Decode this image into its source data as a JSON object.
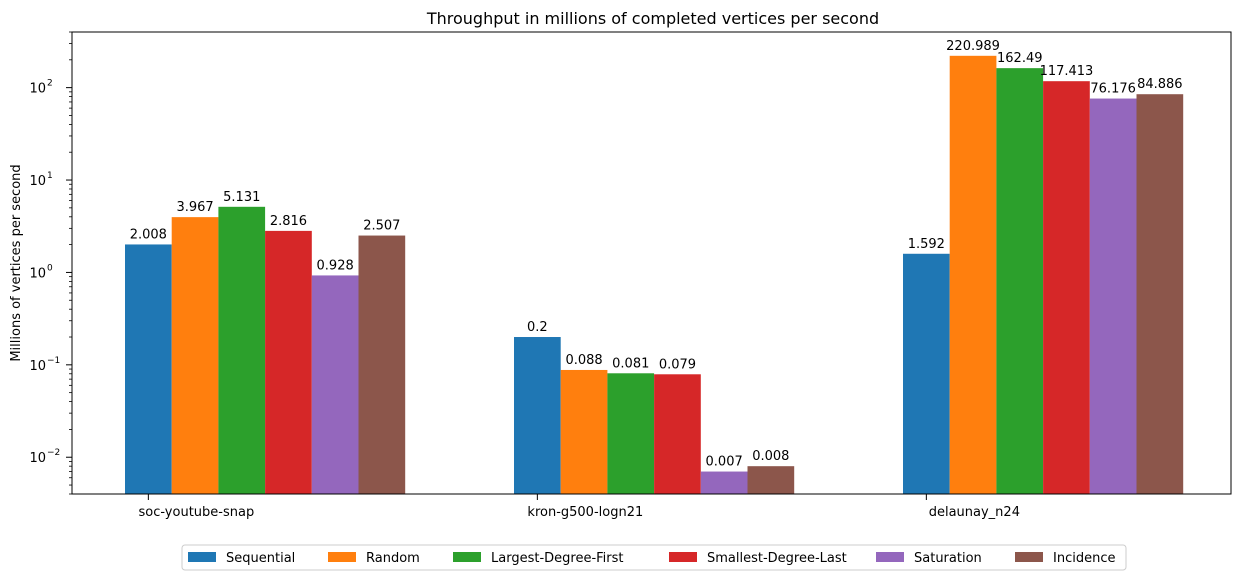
{
  "chart_data": {
    "type": "bar",
    "title": "Throughput in millions of completed vertices per second",
    "xlabel": "",
    "ylabel": "Millions of vertices per second",
    "yscale": "log",
    "ylim": [
      0.004,
      400
    ],
    "y_ticks": [
      {
        "value": 0.01,
        "base": "10",
        "exp": "−2"
      },
      {
        "value": 0.1,
        "base": "10",
        "exp": "−1"
      },
      {
        "value": 1,
        "base": "10",
        "exp": "0"
      },
      {
        "value": 10,
        "base": "10",
        "exp": "1"
      },
      {
        "value": 100,
        "base": "10",
        "exp": "2"
      }
    ],
    "categories": [
      "soc-youtube-snap",
      "kron-g500-logn21",
      "delaunay_n24"
    ],
    "series": [
      {
        "name": "Sequential",
        "color": "#1f77b4",
        "values": [
          2.008,
          0.2,
          1.592
        ],
        "labels": [
          "2.008",
          "0.2",
          "1.592"
        ]
      },
      {
        "name": "Random",
        "color": "#ff7f0e",
        "values": [
          3.967,
          0.088,
          220.989
        ],
        "labels": [
          "3.967",
          "0.088",
          "220.989"
        ]
      },
      {
        "name": "Largest-Degree-First",
        "color": "#2ca02c",
        "values": [
          5.131,
          0.081,
          162.49
        ],
        "labels": [
          "5.131",
          "0.081",
          "162.49"
        ]
      },
      {
        "name": "Smallest-Degree-Last",
        "color": "#d62728",
        "values": [
          2.816,
          0.079,
          117.413
        ],
        "labels": [
          "2.816",
          "0.079",
          "117.413"
        ]
      },
      {
        "name": "Saturation",
        "color": "#9467bd",
        "values": [
          0.928,
          0.007,
          76.176
        ],
        "labels": [
          "0.928",
          "0.007",
          "76.176"
        ]
      },
      {
        "name": "Incidence",
        "color": "#8c564b",
        "values": [
          2.507,
          0.008,
          84.886
        ],
        "labels": [
          "2.507",
          "0.008",
          "84.886"
        ]
      }
    ],
    "legend": {
      "placement": "bottom-center",
      "ncol": 6
    },
    "grid": false
  }
}
